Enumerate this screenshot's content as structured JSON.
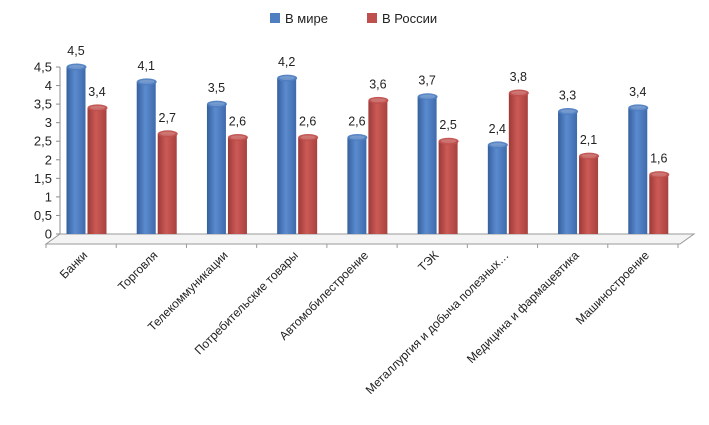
{
  "chart_data": {
    "type": "bar",
    "title": "",
    "xlabel": "",
    "ylabel": "",
    "ylim": [
      0,
      4.5
    ],
    "yticks": [
      "0",
      "0,5",
      "1",
      "1,5",
      "2",
      "2,5",
      "3",
      "3,5",
      "4",
      "4,5"
    ],
    "grid": false,
    "legend_position": "top",
    "categories": [
      "Банки",
      "Торговля",
      "Телекоммуникации",
      "Потребительские товары",
      "Автомобилестроение",
      "ТЭК",
      "Металлургия и добыча полезных…",
      "Медицина и фармацевтика",
      "Машиностроение"
    ],
    "series": [
      {
        "name": "В мире",
        "color": "#4f7ec1",
        "values": [
          4.5,
          4.1,
          3.5,
          4.2,
          2.6,
          3.7,
          2.4,
          3.3,
          3.4
        ],
        "labels": [
          "4,5",
          "4,1",
          "3,5",
          "4,2",
          "2,6",
          "3,7",
          "2,4",
          "3,3",
          "3,4"
        ]
      },
      {
        "name": "В России",
        "color": "#c0504d",
        "values": [
          3.4,
          2.7,
          2.6,
          2.6,
          3.6,
          2.5,
          3.8,
          2.1,
          1.6
        ],
        "labels": [
          "3,4",
          "2,7",
          "2,6",
          "2,6",
          "3,6",
          "2,5",
          "3,8",
          "2,1",
          "1,6"
        ]
      }
    ]
  }
}
